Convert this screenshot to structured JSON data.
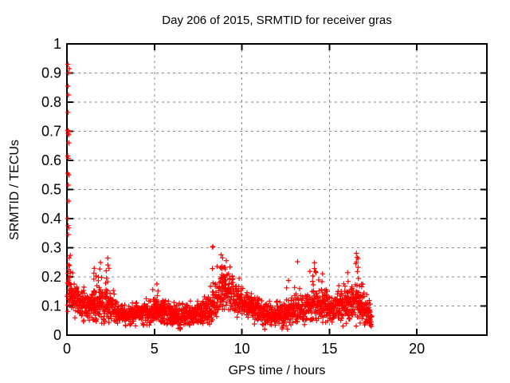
{
  "chart_data": {
    "type": "scatter",
    "title": "Day 206 of 2015, SRMTID for receiver gras",
    "xlabel": "GPS time / hours",
    "ylabel": "SRMTID / TECUs",
    "xlim": [
      0,
      24
    ],
    "ylim": [
      0,
      1
    ],
    "xticks": {
      "values": [
        0,
        5,
        10,
        15,
        20
      ],
      "labels": [
        "0",
        "5",
        "10",
        "15",
        "20"
      ]
    },
    "yticks": {
      "values": [
        0,
        0.1,
        0.2,
        0.3,
        0.4,
        0.5,
        0.6,
        0.7,
        0.8,
        0.9,
        1
      ],
      "labels": [
        "0",
        "0.1",
        "0.2",
        "0.3",
        "0.4",
        "0.5",
        "0.6",
        "0.7",
        "0.8",
        "0.9",
        "1"
      ]
    },
    "grid": {
      "show": true,
      "style": "dashed",
      "color": "#888888"
    },
    "legend": "none",
    "marker": {
      "shape": "plus",
      "color": "#ff0000",
      "size": 6.4,
      "stroke_width": 1.2
    },
    "colors": {
      "axis": "#000000",
      "text": "#000000",
      "background": "#ffffff"
    },
    "series": [
      {
        "name": "SRMTID",
        "x_range": [
          0.02,
          17.42
        ],
        "n_points": 2000,
        "seed": 2015206,
        "band_envelope": [
          [
            0.0,
            0.15,
            0.06,
            0.27
          ],
          [
            0.35,
            0.13,
            0.05,
            0.22
          ],
          [
            0.8,
            0.11,
            0.045,
            0.18
          ],
          [
            1.3,
            0.095,
            0.04,
            0.16
          ],
          [
            1.7,
            0.105,
            0.05,
            0.24
          ],
          [
            2.3,
            0.105,
            0.05,
            0.26
          ],
          [
            2.8,
            0.075,
            0.035,
            0.13
          ],
          [
            3.5,
            0.065,
            0.03,
            0.11
          ],
          [
            4.3,
            0.07,
            0.03,
            0.12
          ],
          [
            5.1,
            0.085,
            0.04,
            0.17
          ],
          [
            5.6,
            0.075,
            0.033,
            0.12
          ],
          [
            6.5,
            0.065,
            0.03,
            0.11
          ],
          [
            7.3,
            0.07,
            0.032,
            0.12
          ],
          [
            7.9,
            0.08,
            0.038,
            0.15
          ],
          [
            8.4,
            0.1,
            0.05,
            0.22
          ],
          [
            8.9,
            0.15,
            0.06,
            0.29
          ],
          [
            9.3,
            0.155,
            0.055,
            0.25
          ],
          [
            9.8,
            0.125,
            0.05,
            0.2
          ],
          [
            10.3,
            0.105,
            0.045,
            0.16
          ],
          [
            10.8,
            0.085,
            0.04,
            0.14
          ],
          [
            11.3,
            0.07,
            0.035,
            0.12
          ],
          [
            11.9,
            0.065,
            0.032,
            0.12
          ],
          [
            12.4,
            0.07,
            0.035,
            0.15
          ],
          [
            12.8,
            0.08,
            0.04,
            0.18
          ],
          [
            13.3,
            0.09,
            0.045,
            0.22
          ],
          [
            13.8,
            0.1,
            0.05,
            0.22
          ],
          [
            14.2,
            0.105,
            0.05,
            0.24
          ],
          [
            14.7,
            0.1,
            0.045,
            0.2
          ],
          [
            15.2,
            0.09,
            0.04,
            0.16
          ],
          [
            15.7,
            0.1,
            0.045,
            0.18
          ],
          [
            16.1,
            0.105,
            0.05,
            0.21
          ],
          [
            16.5,
            0.115,
            0.055,
            0.28
          ],
          [
            16.9,
            0.1,
            0.05,
            0.2
          ],
          [
            17.2,
            0.08,
            0.04,
            0.13
          ],
          [
            17.42,
            0.06,
            0.03,
            0.1
          ]
        ],
        "spike_clusters": [
          [
            0.15,
            0.27,
            6
          ],
          [
            1.55,
            0.23,
            7
          ],
          [
            1.85,
            0.25,
            7
          ],
          [
            2.3,
            0.26,
            9
          ],
          [
            5.15,
            0.17,
            5
          ],
          [
            8.35,
            0.3,
            4
          ],
          [
            8.85,
            0.28,
            9
          ],
          [
            9.05,
            0.25,
            7
          ],
          [
            12.6,
            0.19,
            5
          ],
          [
            14.1,
            0.25,
            7
          ],
          [
            14.6,
            0.21,
            5
          ],
          [
            16.0,
            0.21,
            5
          ],
          [
            16.55,
            0.285,
            8
          ],
          [
            16.7,
            0.26,
            6
          ]
        ],
        "outlier_points": [
          [
            0.06,
            0.93
          ],
          [
            0.13,
            0.915
          ],
          [
            0.08,
            0.9
          ],
          [
            0.06,
            0.855
          ],
          [
            0.09,
            0.825
          ],
          [
            0.06,
            0.765
          ],
          [
            0.05,
            0.703
          ],
          [
            0.08,
            0.7
          ],
          [
            0.07,
            0.693
          ],
          [
            0.1,
            0.688
          ],
          [
            0.11,
            0.66
          ],
          [
            0.05,
            0.615
          ],
          [
            0.08,
            0.607
          ],
          [
            0.05,
            0.556
          ],
          [
            0.11,
            0.55
          ],
          [
            0.08,
            0.515
          ],
          [
            0.1,
            0.46
          ],
          [
            0.05,
            0.4
          ],
          [
            0.07,
            0.376
          ],
          [
            0.1,
            0.368
          ],
          [
            0.08,
            0.345
          ],
          [
            0.13,
            0.265
          ],
          [
            0.1,
            0.225
          ],
          [
            8.32,
            0.302
          ],
          [
            13.18,
            0.252
          ]
        ]
      }
    ]
  }
}
